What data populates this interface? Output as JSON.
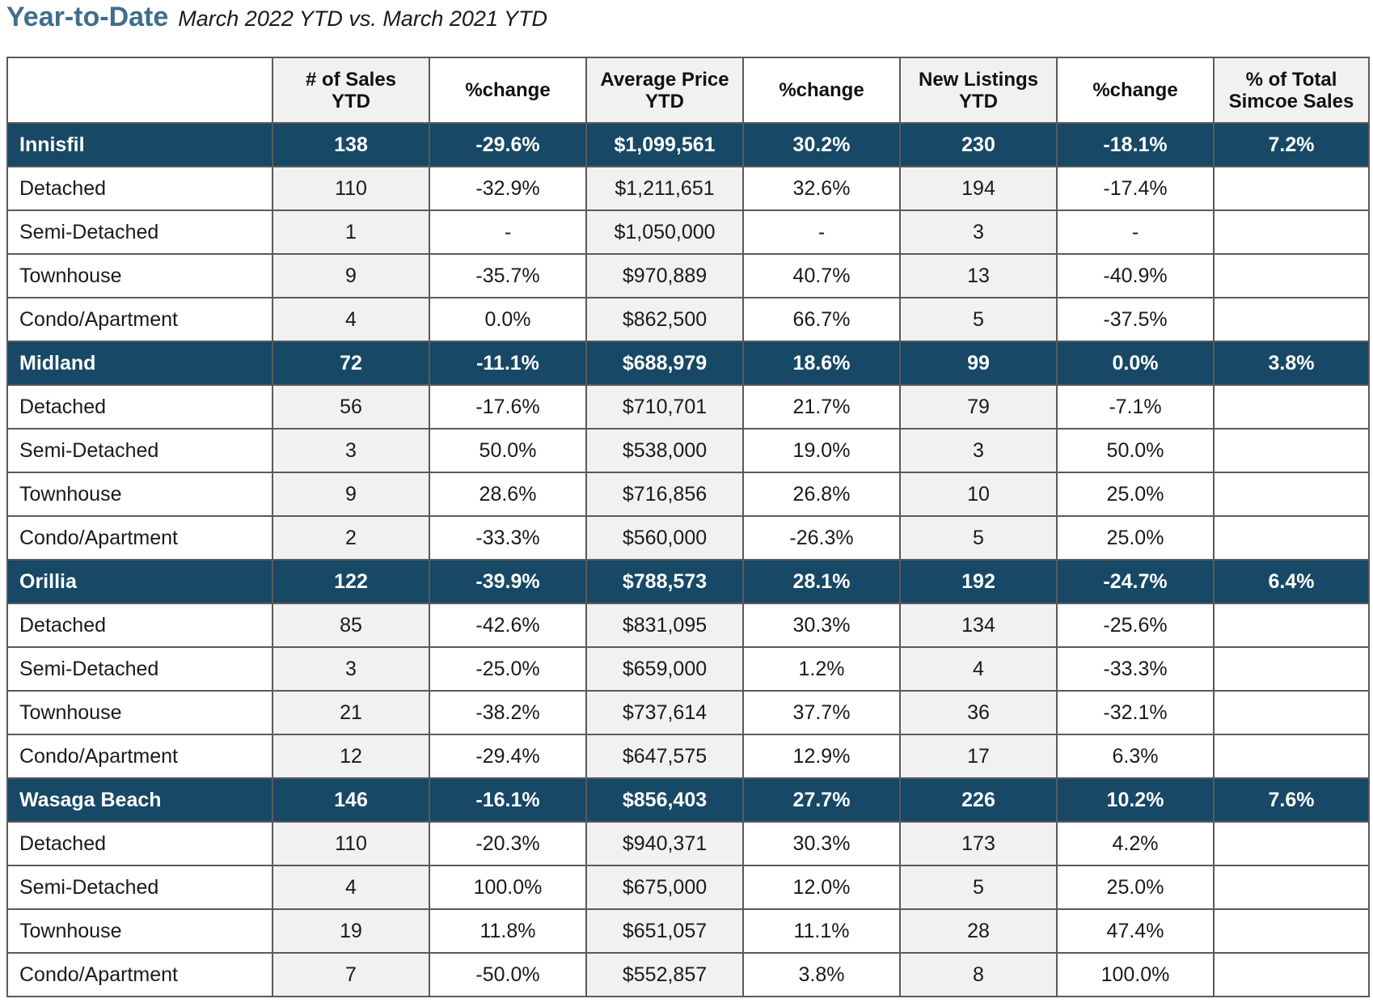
{
  "header": {
    "title": "Year-to-Date",
    "subtitle": "March 2022 YTD vs. March 2021 YTD"
  },
  "colors": {
    "title": "#3f6e88",
    "group_row_bg": "#174866",
    "shaded_column_bg": "#f1f1f1"
  },
  "table": {
    "columns": [
      "",
      [
        "# of Sales",
        "YTD"
      ],
      [
        "%change"
      ],
      [
        "Average Price",
        "YTD"
      ],
      [
        "%change"
      ],
      [
        "New Listings",
        "YTD"
      ],
      [
        "%change"
      ],
      [
        "% of Total",
        "Simcoe Sales"
      ]
    ],
    "groups": [
      {
        "summary": [
          "Innisfil",
          "138",
          "-29.6%",
          "$1,099,561",
          "30.2%",
          "230",
          "-18.1%",
          "7.2%"
        ],
        "rows": [
          [
            "Detached",
            "110",
            "-32.9%",
            "$1,211,651",
            "32.6%",
            "194",
            "-17.4%",
            ""
          ],
          [
            "Semi-Detached",
            "1",
            "-",
            "$1,050,000",
            "-",
            "3",
            "-",
            ""
          ],
          [
            "Townhouse",
            "9",
            "-35.7%",
            "$970,889",
            "40.7%",
            "13",
            "-40.9%",
            ""
          ],
          [
            "Condo/Apartment",
            "4",
            "0.0%",
            "$862,500",
            "66.7%",
            "5",
            "-37.5%",
            ""
          ]
        ]
      },
      {
        "summary": [
          "Midland",
          "72",
          "-11.1%",
          "$688,979",
          "18.6%",
          "99",
          "0.0%",
          "3.8%"
        ],
        "rows": [
          [
            "Detached",
            "56",
            "-17.6%",
            "$710,701",
            "21.7%",
            "79",
            "-7.1%",
            ""
          ],
          [
            "Semi-Detached",
            "3",
            "50.0%",
            "$538,000",
            "19.0%",
            "3",
            "50.0%",
            ""
          ],
          [
            "Townhouse",
            "9",
            "28.6%",
            "$716,856",
            "26.8%",
            "10",
            "25.0%",
            ""
          ],
          [
            "Condo/Apartment",
            "2",
            "-33.3%",
            "$560,000",
            "-26.3%",
            "5",
            "25.0%",
            ""
          ]
        ]
      },
      {
        "summary": [
          "Orillia",
          "122",
          "-39.9%",
          "$788,573",
          "28.1%",
          "192",
          "-24.7%",
          "6.4%"
        ],
        "rows": [
          [
            "Detached",
            "85",
            "-42.6%",
            "$831,095",
            "30.3%",
            "134",
            "-25.6%",
            ""
          ],
          [
            "Semi-Detached",
            "3",
            "-25.0%",
            "$659,000",
            "1.2%",
            "4",
            "-33.3%",
            ""
          ],
          [
            "Townhouse",
            "21",
            "-38.2%",
            "$737,614",
            "37.7%",
            "36",
            "-32.1%",
            ""
          ],
          [
            "Condo/Apartment",
            "12",
            "-29.4%",
            "$647,575",
            "12.9%",
            "17",
            "6.3%",
            ""
          ]
        ]
      },
      {
        "summary": [
          "Wasaga Beach",
          "146",
          "-16.1%",
          "$856,403",
          "27.7%",
          "226",
          "10.2%",
          "7.6%"
        ],
        "rows": [
          [
            "Detached",
            "110",
            "-20.3%",
            "$940,371",
            "30.3%",
            "173",
            "4.2%",
            ""
          ],
          [
            "Semi-Detached",
            "4",
            "100.0%",
            "$675,000",
            "12.0%",
            "5",
            "25.0%",
            ""
          ],
          [
            "Townhouse",
            "19",
            "11.8%",
            "$651,057",
            "11.1%",
            "28",
            "47.4%",
            ""
          ],
          [
            "Condo/Apartment",
            "7",
            "-50.0%",
            "$552,857",
            "3.8%",
            "8",
            "100.0%",
            ""
          ]
        ]
      }
    ]
  }
}
